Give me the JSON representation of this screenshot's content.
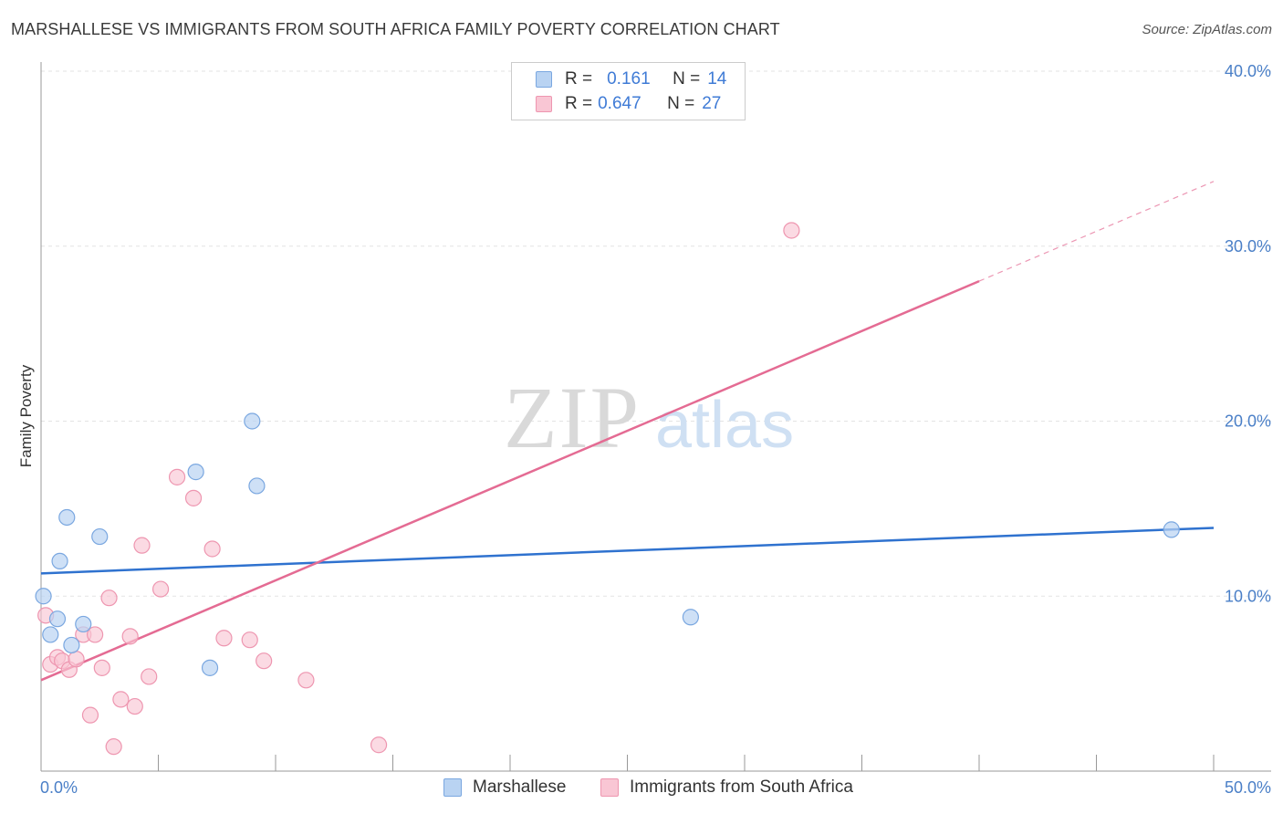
{
  "header": {
    "title": "MARSHALLESE VS IMMIGRANTS FROM SOUTH AFRICA FAMILY POVERTY CORRELATION CHART",
    "source": "Source: ZipAtlas.com"
  },
  "legend_top": {
    "rows": [
      {
        "r_label": "R =",
        "r_value": "0.161",
        "n_label": "N =",
        "n_value": "14"
      },
      {
        "r_label": "R =",
        "r_value": "0.647",
        "n_label": "N =",
        "n_value": "27"
      }
    ]
  },
  "legend_bottom": {
    "items": [
      "Marshallese",
      "Immigrants from South Africa"
    ]
  },
  "colors": {
    "marshallese_fill": "#b9d3f2",
    "marshallese_stroke": "#7aa7e0",
    "marshallese_line": "#2f72cf",
    "sa_fill": "#f9c6d4",
    "sa_stroke": "#ee96b0",
    "sa_line": "#e46b93",
    "tick_text": "#4a7fc7",
    "grid": "#e3e3e3"
  },
  "watermark": {
    "zip": "ZIP",
    "atlas": "atlas"
  },
  "chart_data": {
    "type": "scatter",
    "title": "MARSHALLESE VS IMMIGRANTS FROM SOUTH AFRICA FAMILY POVERTY CORRELATION CHART",
    "xlabel": "",
    "ylabel": "Family Poverty",
    "xlim": [
      0,
      50
    ],
    "ylim": [
      0,
      40
    ],
    "x_tick_labels": [
      "0.0%",
      "50.0%"
    ],
    "y_ticks": [
      10,
      20,
      30,
      40
    ],
    "y_tick_labels": [
      "10.0%",
      "20.0%",
      "30.0%",
      "40.0%"
    ],
    "grid": true,
    "legend_position": "top-center",
    "series": [
      {
        "name": "Marshallese",
        "r": 0.161,
        "n": 14,
        "points": [
          [
            0.1,
            10.0
          ],
          [
            0.4,
            7.8
          ],
          [
            0.7,
            8.7
          ],
          [
            0.8,
            12.0
          ],
          [
            1.1,
            14.5
          ],
          [
            1.3,
            7.2
          ],
          [
            1.8,
            8.4
          ],
          [
            2.5,
            13.4
          ],
          [
            6.6,
            17.1
          ],
          [
            7.2,
            5.9
          ],
          [
            9.0,
            20.0
          ],
          [
            9.2,
            16.3
          ],
          [
            27.7,
            8.8
          ],
          [
            48.2,
            13.8
          ]
        ],
        "trend": {
          "x": [
            0,
            50
          ],
          "y": [
            11.3,
            13.9
          ]
        }
      },
      {
        "name": "Immigrants from South Africa",
        "r": 0.647,
        "n": 27,
        "points": [
          [
            0.2,
            8.9
          ],
          [
            0.4,
            6.1
          ],
          [
            0.7,
            6.5
          ],
          [
            0.9,
            6.3
          ],
          [
            1.2,
            5.8
          ],
          [
            1.5,
            6.4
          ],
          [
            1.8,
            7.8
          ],
          [
            2.1,
            3.2
          ],
          [
            2.3,
            7.8
          ],
          [
            2.6,
            5.9
          ],
          [
            2.9,
            9.9
          ],
          [
            3.1,
            1.4
          ],
          [
            3.4,
            4.1
          ],
          [
            3.8,
            7.7
          ],
          [
            4.0,
            3.7
          ],
          [
            4.3,
            12.9
          ],
          [
            4.6,
            5.4
          ],
          [
            5.1,
            10.4
          ],
          [
            5.8,
            16.8
          ],
          [
            6.5,
            15.6
          ],
          [
            7.3,
            12.7
          ],
          [
            7.8,
            7.6
          ],
          [
            8.9,
            7.5
          ],
          [
            9.5,
            6.3
          ],
          [
            11.3,
            5.2
          ],
          [
            14.4,
            1.5
          ],
          [
            32.0,
            30.9
          ]
        ],
        "trend": {
          "x": [
            0,
            40
          ],
          "y": [
            5.2,
            28.0
          ],
          "dashed_to": {
            "x": 50,
            "y": 33.7
          }
        }
      }
    ]
  }
}
